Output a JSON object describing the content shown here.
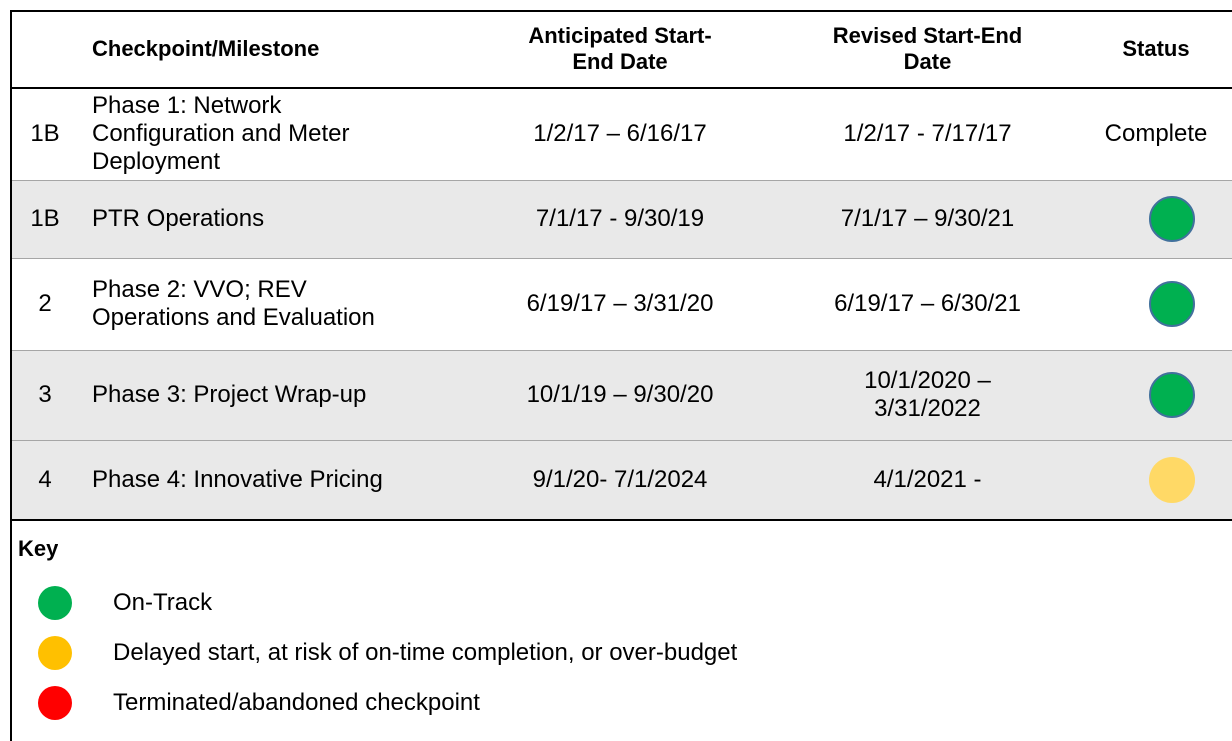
{
  "table": {
    "header": [
      [],
      [
        "Checkpoint/Milestone"
      ],
      [
        "Anticipated Start-",
        "End Date"
      ],
      [
        "Revised Start-End",
        "Date"
      ],
      [
        "Status"
      ]
    ],
    "rows": [
      {
        "cells": [
          [
            "1B"
          ],
          [
            "Phase 1: Network",
            "Configuration and Meter",
            "Deployment"
          ],
          [
            "1/2/17 – 6/16/17"
          ],
          [
            "1/2/17 - 7/17/17"
          ]
        ],
        "status": "Complete",
        "shade": false
      },
      {
        "cells": [
          [
            "1B"
          ],
          [
            "PTR Operations"
          ],
          [
            "7/1/17 - 9/30/19"
          ],
          [
            "7/1/17 – 9/30/21"
          ]
        ],
        "status_color": "#00b050",
        "shade": true
      },
      {
        "cells": [
          [
            "2"
          ],
          [
            "Phase 2: VVO; REV",
            "Operations and Evaluation"
          ],
          [
            "6/19/17 – 3/31/20"
          ],
          [
            "6/19/17 – 6/30/21"
          ]
        ],
        "status_color": "#00b050",
        "shade": false
      },
      {
        "cells": [
          [
            "3"
          ],
          [
            "Phase 3: Project Wrap-up"
          ],
          [
            "10/1/19 – 9/30/20"
          ],
          [
            "10/1/2020 –",
            "3/31/2022"
          ]
        ],
        "status_color": "#00b050",
        "shade": true
      },
      {
        "cells": [
          [
            "4"
          ],
          [
            "Phase 4: Innovative Pricing"
          ],
          [
            "9/1/20- 7/1/2024"
          ],
          [
            "4/1/2021 -"
          ]
        ],
        "status_color": "#ffd966",
        "shade": true
      }
    ]
  },
  "key": {
    "title": "Key",
    "items": [
      {
        "label": "On-Track",
        "color": "#00b050"
      },
      {
        "label": "Delayed start, at risk of on-time completion, or over-budget",
        "color": "#ffc000"
      },
      {
        "label": "Terminated/abandoned checkpoint",
        "color": "#ff0000"
      }
    ]
  }
}
